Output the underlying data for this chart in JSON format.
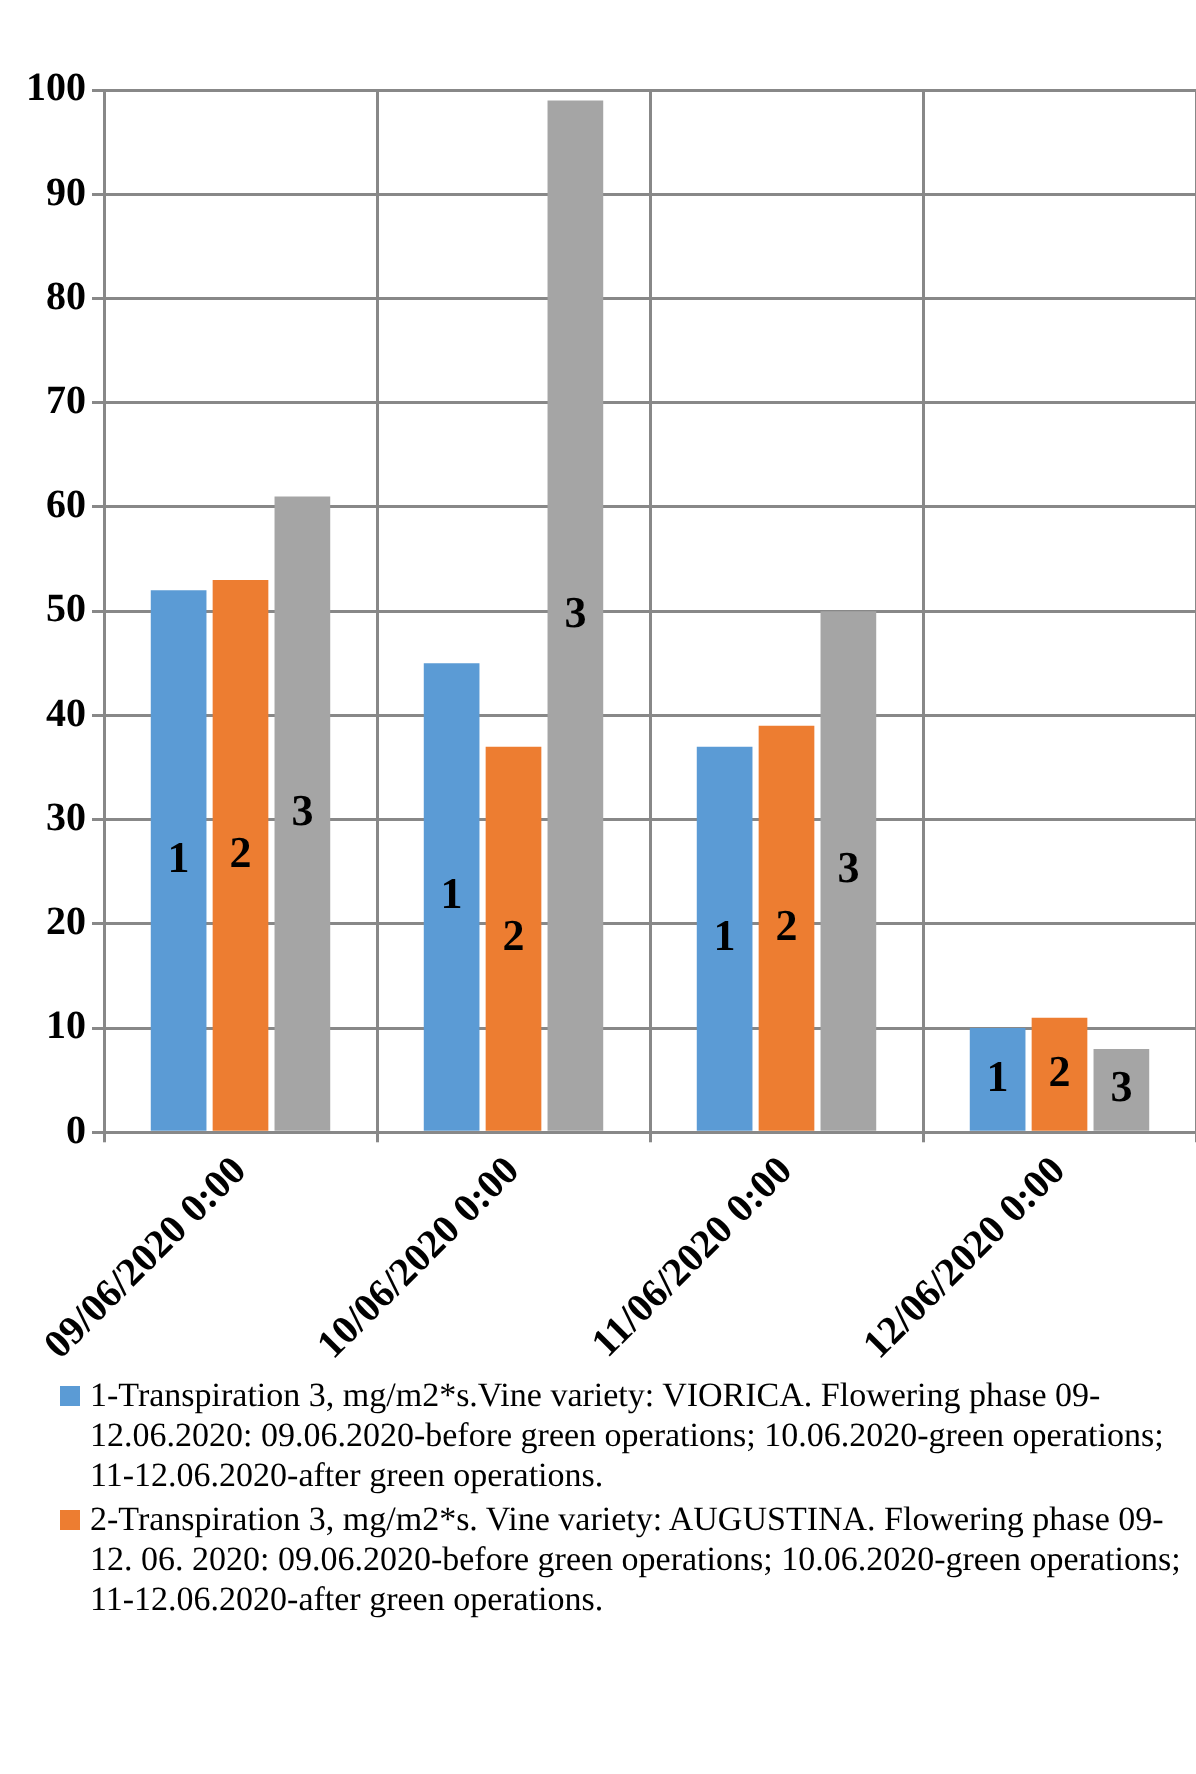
{
  "chart_data": {
    "type": "bar",
    "categories": [
      "09/06/2020 0:00",
      "10/06/2020 0:00",
      "11/06/2020 0:00",
      "12/06/2020 0:00"
    ],
    "series": [
      {
        "name": "1-Transpiration 3, mg/m2*s.Vine variety: VIORICA. Flowering phase 09-12.06.2020: 09.06.2020-before green operations; 10.06.2020-green operations; 11-12.06.2020-after green operations.",
        "color": "#5b9bd5",
        "values": [
          52,
          45,
          37,
          10
        ]
      },
      {
        "name": "2-Transpiration 3, mg/m2*s. Vine variety: AUGUSTINA. Flowering phase 09-12. 06. 2020: 09.06.2020-before green operations; 10.06.2020-green operations; 11-12.06.2020-after green operations.",
        "color": "#ed7d31",
        "values": [
          53,
          37,
          39,
          11
        ]
      },
      {
        "color": "#a5a5a5",
        "values": [
          61,
          99,
          50,
          8
        ]
      }
    ],
    "annotations": [
      "1",
      "2",
      "3",
      "1",
      "2",
      "3",
      "1",
      "2",
      "3",
      "1",
      "2",
      "3"
    ],
    "ylim": [
      0,
      100
    ],
    "yticks": [
      0,
      10,
      20,
      30,
      40,
      50,
      60,
      70,
      80,
      90,
      100
    ],
    "grid": true,
    "legend": "bottom"
  }
}
